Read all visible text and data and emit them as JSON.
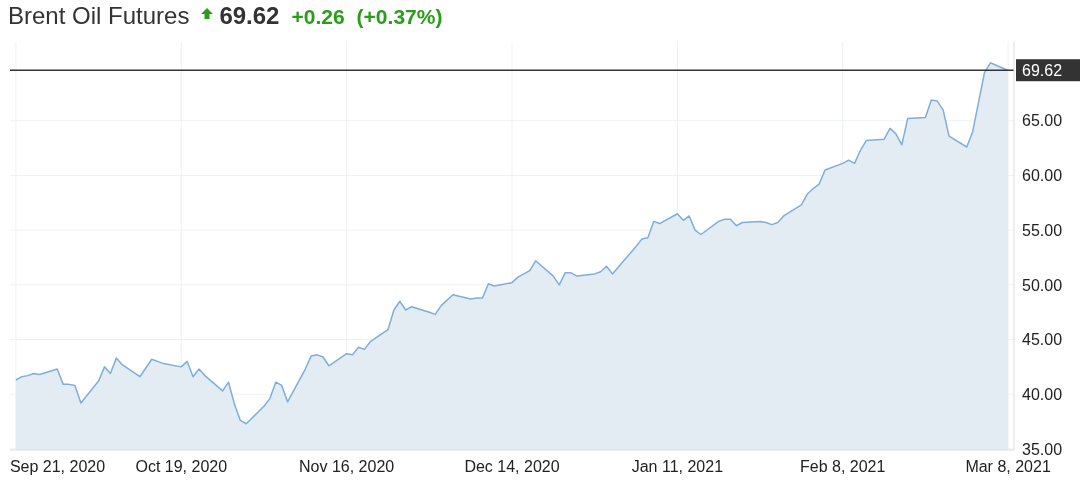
{
  "chart_data": {
    "type": "area",
    "title": "Brent Oil Futures",
    "annotations": [
      "69.62",
      "+0.26",
      "(+0.37%)"
    ],
    "x": [
      "2020-09-21",
      "2020-09-22",
      "2020-09-23",
      "2020-09-24",
      "2020-09-25",
      "2020-09-28",
      "2020-09-29",
      "2020-09-30",
      "2020-10-01",
      "2020-10-02",
      "2020-10-05",
      "2020-10-06",
      "2020-10-07",
      "2020-10-08",
      "2020-10-09",
      "2020-10-12",
      "2020-10-13",
      "2020-10-14",
      "2020-10-15",
      "2020-10-16",
      "2020-10-19",
      "2020-10-20",
      "2020-10-21",
      "2020-10-22",
      "2020-10-23",
      "2020-10-26",
      "2020-10-27",
      "2020-10-28",
      "2020-10-29",
      "2020-10-30",
      "2020-11-02",
      "2020-11-03",
      "2020-11-04",
      "2020-11-05",
      "2020-11-06",
      "2020-11-09",
      "2020-11-10",
      "2020-11-11",
      "2020-11-12",
      "2020-11-13",
      "2020-11-16",
      "2020-11-17",
      "2020-11-18",
      "2020-11-19",
      "2020-11-20",
      "2020-11-23",
      "2020-11-24",
      "2020-11-25",
      "2020-11-26",
      "2020-11-27",
      "2020-11-30",
      "2020-12-01",
      "2020-12-02",
      "2020-12-03",
      "2020-12-04",
      "2020-12-07",
      "2020-12-08",
      "2020-12-09",
      "2020-12-10",
      "2020-12-11",
      "2020-12-14",
      "2020-12-15",
      "2020-12-16",
      "2020-12-17",
      "2020-12-18",
      "2020-12-21",
      "2020-12-22",
      "2020-12-23",
      "2020-12-24",
      "2020-12-25",
      "2020-12-28",
      "2020-12-29",
      "2020-12-30",
      "2020-12-31",
      "2021-01-04",
      "2021-01-05",
      "2021-01-06",
      "2021-01-07",
      "2021-01-08",
      "2021-01-11",
      "2021-01-12",
      "2021-01-13",
      "2021-01-14",
      "2021-01-15",
      "2021-01-18",
      "2021-01-19",
      "2021-01-20",
      "2021-01-21",
      "2021-01-22",
      "2021-01-25",
      "2021-01-26",
      "2021-01-27",
      "2021-01-28",
      "2021-01-29",
      "2021-02-01",
      "2021-02-02",
      "2021-02-03",
      "2021-02-04",
      "2021-02-05",
      "2021-02-08",
      "2021-02-09",
      "2021-02-10",
      "2021-02-11",
      "2021-02-12",
      "2021-02-15",
      "2021-02-16",
      "2021-02-17",
      "2021-02-18",
      "2021-02-19",
      "2021-02-22",
      "2021-02-23",
      "2021-02-24",
      "2021-02-25",
      "2021-02-26",
      "2021-03-01",
      "2021-03-02",
      "2021-03-03",
      "2021-03-04",
      "2021-03-05",
      "2021-03-08"
    ],
    "series": [
      {
        "color": "#7eaedb",
        "values": [
          41.3,
          41.6,
          41.7,
          41.9,
          41.8,
          42.3,
          40.9,
          40.9,
          40.8,
          39.2,
          41.2,
          42.5,
          41.9,
          43.3,
          42.7,
          41.6,
          42.4,
          43.2,
          43.0,
          42.8,
          42.5,
          43.0,
          41.6,
          42.3,
          41.7,
          40.3,
          41.1,
          39.1,
          37.6,
          37.3,
          38.9,
          39.6,
          41.1,
          40.8,
          39.3,
          42.3,
          43.5,
          43.6,
          43.4,
          42.6,
          43.7,
          43.6,
          44.3,
          44.1,
          44.8,
          45.9,
          47.7,
          48.5,
          47.7,
          48.0,
          47.5,
          47.3,
          48.1,
          48.6,
          49.1,
          48.7,
          48.8,
          48.8,
          50.1,
          49.9,
          50.2,
          50.7,
          51.0,
          51.3,
          52.2,
          50.8,
          50.0,
          51.1,
          51.1,
          50.8,
          51.0,
          51.2,
          51.7,
          51.0,
          53.5,
          54.2,
          54.3,
          55.8,
          55.6,
          56.5,
          55.9,
          56.3,
          55.0,
          54.6,
          55.8,
          56.0,
          56.0,
          55.4,
          55.7,
          55.8,
          55.7,
          55.5,
          55.7,
          56.3,
          57.3,
          58.3,
          58.8,
          59.2,
          60.5,
          61.1,
          61.4,
          61.1,
          62.3,
          63.2,
          63.3,
          64.3,
          63.8,
          62.8,
          65.2,
          65.3,
          66.9,
          66.8,
          66.0,
          63.6,
          62.6,
          64.0,
          66.7,
          69.4,
          70.3,
          69.6
        ]
      }
    ],
    "xlim": [
      "2020-09-20",
      "2021-03-09"
    ],
    "xticks": [
      {
        "value": "2020-09-21",
        "label": "Sep 21, 2020"
      },
      {
        "value": "2020-10-19",
        "label": "Oct 19, 2020"
      },
      {
        "value": "2020-11-16",
        "label": "Nov 16, 2020"
      },
      {
        "value": "2020-12-14",
        "label": "Dec 14, 2020"
      },
      {
        "value": "2021-01-11",
        "label": "Jan 11, 2021"
      },
      {
        "value": "2021-02-08",
        "label": "Feb 8, 2021"
      },
      {
        "value": "2021-03-08",
        "label": "Mar 8, 2021"
      }
    ],
    "ylim": [
      34.9,
      72.2
    ],
    "yticks": [
      {
        "value": 35,
        "label": "35.00"
      },
      {
        "value": 40,
        "label": "40.00"
      },
      {
        "value": 45,
        "label": "45.00"
      },
      {
        "value": 50,
        "label": "50.00"
      },
      {
        "value": 55,
        "label": "55.00"
      },
      {
        "value": 60,
        "label": "60.00"
      },
      {
        "value": 65,
        "label": "65.00"
      }
    ],
    "ref_lines": [
      {
        "axis": "y",
        "value": 69.62,
        "label": "69.62",
        "color": "#333333"
      }
    ],
    "grid": true,
    "marker": "none",
    "line_style": "solid"
  }
}
